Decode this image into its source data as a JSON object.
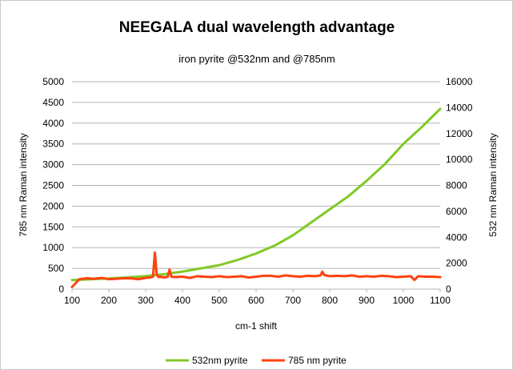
{
  "chart_data": {
    "type": "line",
    "title": "NEEGALA dual wavelength advantage",
    "subtitle": "iron pyrite @532nm and @785nm",
    "xlabel": "cm-1 shift",
    "ylabel_left": "785 nm Raman intensity",
    "ylabel_right": "532 nm Raman intensity",
    "xlim": [
      100,
      1100
    ],
    "ylim_left": [
      0,
      5000
    ],
    "ylim_right": [
      0,
      16000
    ],
    "x_ticks": [
      "100",
      "200",
      "300",
      "400",
      "500",
      "600",
      "700",
      "800",
      "900",
      "1000",
      "1100"
    ],
    "y_ticks_left": [
      "0",
      "500",
      "1000",
      "1500",
      "2000",
      "2500",
      "3000",
      "3500",
      "4000",
      "4500",
      "5000"
    ],
    "y_ticks_right": [
      "0",
      "2000",
      "4000",
      "6000",
      "8000",
      "10000",
      "12000",
      "14000",
      "16000"
    ],
    "grid": true,
    "legend_position": "bottom",
    "series": [
      {
        "name": "532nm pyrite",
        "color": "#80c926",
        "axis": "right",
        "x": [
          100,
          150,
          200,
          250,
          300,
          350,
          400,
          450,
          500,
          550,
          600,
          650,
          700,
          750,
          800,
          850,
          900,
          950,
          1000,
          1050,
          1100
        ],
        "y": [
          700,
          760,
          820,
          900,
          1000,
          1150,
          1350,
          1600,
          1850,
          2250,
          2750,
          3350,
          4150,
          5150,
          6150,
          7150,
          8350,
          9650,
          11200,
          12500,
          13900
        ]
      },
      {
        "name": "785 nm pyrite",
        "color": "#ff420e",
        "axis": "left",
        "x": [
          100,
          120,
          140,
          160,
          180,
          200,
          220,
          240,
          260,
          280,
          300,
          310,
          320,
          325,
          330,
          335,
          340,
          350,
          360,
          365,
          370,
          380,
          400,
          420,
          440,
          460,
          480,
          500,
          520,
          540,
          560,
          580,
          600,
          620,
          640,
          660,
          680,
          700,
          720,
          740,
          760,
          775,
          780,
          785,
          800,
          820,
          840,
          860,
          880,
          900,
          920,
          940,
          960,
          980,
          1000,
          1020,
          1030,
          1040,
          1060,
          1080,
          1100
        ],
        "y": [
          50,
          240,
          260,
          250,
          270,
          240,
          250,
          260,
          260,
          240,
          270,
          280,
          300,
          880,
          350,
          290,
          300,
          280,
          300,
          470,
          300,
          290,
          300,
          270,
          310,
          300,
          290,
          310,
          290,
          300,
          310,
          280,
          300,
          320,
          320,
          300,
          330,
          310,
          300,
          320,
          310,
          330,
          420,
          340,
          310,
          320,
          310,
          330,
          300,
          310,
          300,
          320,
          310,
          290,
          300,
          310,
          220,
          310,
          300,
          300,
          290
        ]
      }
    ]
  }
}
